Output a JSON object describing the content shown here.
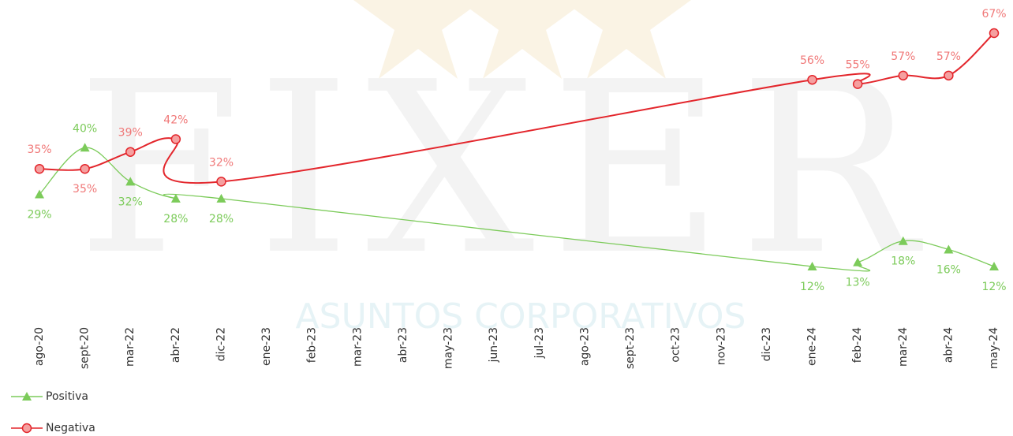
{
  "chart_data": {
    "type": "line",
    "watermark": {
      "text": "FIXER",
      "tagline": "ASUNTOS CORPORATIVOS"
    },
    "categories": [
      "ago-20",
      "sept-20",
      "mar-22",
      "abr-22",
      "dic-22",
      "ene-23",
      "feb-23",
      "mar-23",
      "abr-23",
      "may-23",
      "jun-23",
      "jul-23",
      "ago-23",
      "sept-23",
      "oct-23",
      "nov-23",
      "dic-23",
      "ene-24",
      "feb-24",
      "mar-24",
      "abr-24",
      "may-24"
    ],
    "span_gaps": true,
    "legend": "bottom-left",
    "series": [
      {
        "name": "Positiva",
        "color": "#7ccb5a",
        "marker": "triangle",
        "values": [
          29,
          40,
          32,
          28,
          28,
          null,
          null,
          null,
          null,
          null,
          null,
          null,
          null,
          null,
          null,
          null,
          null,
          12,
          13,
          18,
          16,
          12
        ],
        "value_labels": [
          "29%",
          "40%",
          "32%",
          "28%",
          "28%",
          null,
          null,
          null,
          null,
          null,
          null,
          null,
          null,
          null,
          null,
          null,
          null,
          "12%",
          "13%",
          "18%",
          "16%",
          "12%"
        ]
      },
      {
        "name": "Negativa",
        "color": "#e3262c",
        "marker": "circle",
        "values": [
          35,
          35,
          39,
          42,
          32,
          null,
          null,
          null,
          null,
          null,
          null,
          null,
          null,
          null,
          null,
          null,
          null,
          56,
          55,
          57,
          57,
          67
        ],
        "value_labels": [
          "35%",
          "35%",
          "39%",
          "42%",
          "32%",
          null,
          null,
          null,
          null,
          null,
          null,
          null,
          null,
          null,
          null,
          null,
          null,
          "56%",
          "55%",
          "57%",
          "57%",
          "67%"
        ]
      }
    ]
  }
}
